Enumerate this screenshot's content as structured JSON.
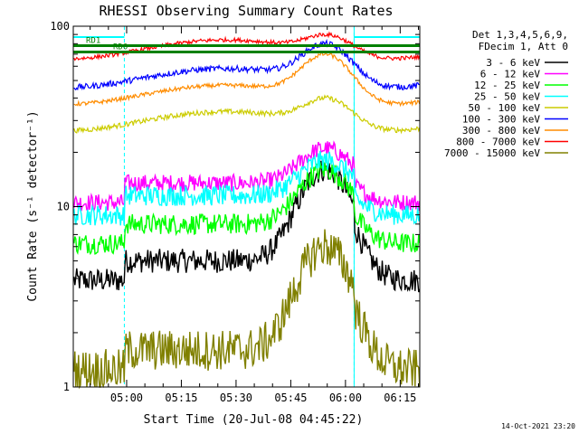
{
  "chart_data": {
    "type": "line",
    "title": "RHESSI Observing Summary Count Rates",
    "xlabel": "Start Time (20-Jul-08 04:45:22)",
    "ylabel": "Count Rate (s⁻¹ detector⁻¹)",
    "yscale": "log",
    "ylim": [
      1,
      100
    ],
    "xlim_minutes": [
      0,
      95
    ],
    "x_ticks": [
      {
        "label": "05:00",
        "minute": 14.63
      },
      {
        "label": "05:15",
        "minute": 29.63
      },
      {
        "label": "05:30",
        "minute": 44.63
      },
      {
        "label": "05:45",
        "minute": 59.63
      },
      {
        "label": "06:00",
        "minute": 74.63
      },
      {
        "label": "06:15",
        "minute": 89.63
      }
    ],
    "y_ticks": [
      {
        "label": "1",
        "value": 1
      },
      {
        "label": "10",
        "value": 10
      },
      {
        "label": "100",
        "value": 100
      }
    ],
    "legend_header": [
      "Det 1,3,4,5,6,9,",
      "FDecim 1, Att 0"
    ],
    "legend_position": "right",
    "series": [
      {
        "name": "3 - 6 keV",
        "color": "#000000",
        "baseline": 5.0,
        "peak": 16,
        "noise": 0.07,
        "gaps": true
      },
      {
        "name": "6 - 12 keV",
        "color": "#ff00ff",
        "baseline": 13.5,
        "peak": 21,
        "noise": 0.05,
        "gaps": true
      },
      {
        "name": "12 - 25 keV",
        "color": "#00ff00",
        "baseline": 8.0,
        "peak": 16,
        "noise": 0.06,
        "gaps": true
      },
      {
        "name": "25 - 50 keV",
        "color": "#00ffff",
        "baseline": 11.5,
        "peak": 18,
        "noise": 0.06,
        "gaps": true
      },
      {
        "name": "50 - 100 keV",
        "color": "#cccc00",
        "baseline": 30,
        "peak": 40,
        "noise": 0.025,
        "gaps": false
      },
      {
        "name": "100 - 300 keV",
        "color": "#0000ff",
        "baseline": 52,
        "peak": 80,
        "noise": 0.03,
        "gaps": false
      },
      {
        "name": "300 - 800 keV",
        "color": "#ff8c00",
        "baseline": 42,
        "peak": 70,
        "noise": 0.02,
        "gaps": false
      },
      {
        "name": "800 - 7000 keV",
        "color": "#ff0000",
        "baseline": 75,
        "peak": 90,
        "noise": 0.02,
        "gaps": false
      },
      {
        "name": "7000 - 15000 keV",
        "color": "#808000",
        "baseline": 1.6,
        "peak": 6,
        "noise": 0.12,
        "gaps": true
      }
    ],
    "flags": [
      {
        "name": "RD0",
        "color": "#008000",
        "value": 72
      },
      {
        "name": "RD1",
        "color": "#008000",
        "value": 78
      }
    ],
    "saa_intervals_minutes": [
      [
        0,
        14
      ],
      [
        77,
        95
      ]
    ],
    "eclipse_intervals_minutes": [
      [
        0,
        14
      ],
      [
        77,
        95
      ]
    ],
    "flare_peak_minute": 69,
    "timestamp": "14-Oct-2021 23:20"
  }
}
